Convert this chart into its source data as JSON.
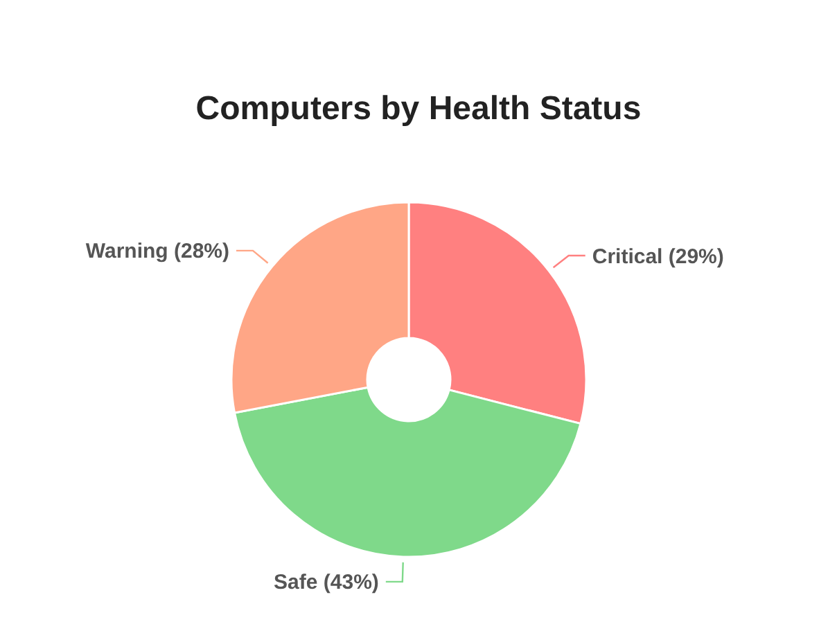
{
  "chart_data": {
    "type": "donut",
    "title": "Computers by Health Status",
    "categories": [
      "Critical",
      "Safe",
      "Warning"
    ],
    "values": [
      29,
      43,
      28
    ],
    "value_labels": [
      "(29%)",
      "(43%)",
      "(28%)"
    ],
    "colors": [
      "#ff8080",
      "#7fd98a",
      "#ffa686"
    ]
  }
}
